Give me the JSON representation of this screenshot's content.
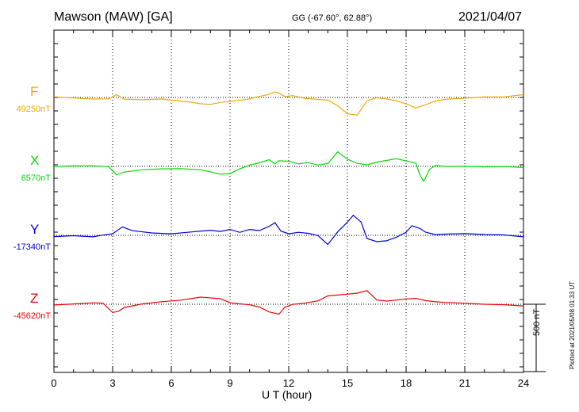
{
  "header": {
    "station": "Mawson (MAW)  [GA]",
    "coords": "GG (-67.60°,  62.88°)",
    "date": "2021/04/07"
  },
  "footer": {
    "xlabel": "U T (hour)",
    "scale_label": "500 nT",
    "plotted": "Plotted at 2021/05/08 01:33 UT"
  },
  "chart_data": {
    "type": "line",
    "xlabel": "U T (hour)",
    "xlim": [
      0,
      24
    ],
    "xticks": [
      "0",
      "3",
      "6",
      "9",
      "12",
      "15",
      "18",
      "21",
      "24"
    ],
    "scale_bar_nT": 500,
    "grid": "dotted vertical lines every 3 hours; dotted baseline per component",
    "series": [
      {
        "name": "F",
        "baseline_label": "49250nT",
        "color": "#f5a800",
        "x": [
          0,
          1,
          2,
          2.8,
          3.2,
          3.6,
          4.5,
          5.5,
          6.2,
          7,
          7.5,
          8,
          8.5,
          9,
          9.5,
          10,
          10.5,
          11,
          11.3,
          11.5,
          11.8,
          12.2,
          12.8,
          13.5,
          14,
          14.5,
          15,
          15.5,
          16,
          16.5,
          17,
          17.5,
          18,
          18.5,
          19,
          19.5,
          20,
          21,
          22,
          23,
          24
        ],
        "y": [
          49255,
          49250,
          49245,
          49248,
          49280,
          49245,
          49238,
          49240,
          49225,
          49210,
          49195,
          49190,
          49205,
          49215,
          49225,
          49240,
          49262,
          49280,
          49300,
          49290,
          49265,
          49268,
          49245,
          49232,
          49225,
          49180,
          49120,
          49110,
          49220,
          49245,
          49240,
          49230,
          49210,
          49180,
          49205,
          49230,
          49240,
          49245,
          49250,
          49248,
          49262
        ]
      },
      {
        "name": "X",
        "baseline_label": "6570nT",
        "color": "#00dd00",
        "x": [
          0,
          1,
          2,
          2.8,
          3.2,
          3.6,
          4.5,
          5.5,
          6.5,
          7.5,
          8.5,
          9,
          9.5,
          10,
          10.5,
          11,
          11.3,
          11.5,
          12,
          12.5,
          13,
          13.5,
          14,
          14.5,
          15,
          15.5,
          16,
          16.5,
          17,
          17.5,
          18,
          18.5,
          18.7,
          18.9,
          19.2,
          19.5,
          20,
          21,
          22,
          23,
          24
        ],
        "y": [
          6570,
          6570,
          6568,
          6560,
          6500,
          6520,
          6540,
          6550,
          6555,
          6550,
          6520,
          6525,
          6560,
          6585,
          6600,
          6620,
          6585,
          6605,
          6600,
          6580,
          6590,
          6575,
          6590,
          6680,
          6630,
          6600,
          6590,
          6610,
          6620,
          6630,
          6610,
          6590,
          6500,
          6450,
          6540,
          6570,
          6565,
          6570,
          6570,
          6575,
          6570
        ]
      },
      {
        "name": "Y",
        "baseline_label": "-17340nT",
        "color": "#0000dd",
        "x": [
          0,
          1,
          2,
          2.5,
          3,
          3.5,
          4,
          5,
          6,
          7,
          8,
          8.5,
          9,
          9.5,
          10,
          10.5,
          11,
          11.3,
          11.6,
          12,
          12.5,
          13,
          13.5,
          14,
          14.5,
          15,
          15.3,
          15.7,
          16,
          16.5,
          17,
          17.5,
          18,
          18.3,
          18.7,
          19,
          19.5,
          20,
          21,
          22,
          23,
          24
        ],
        "y": [
          -17350,
          -17340,
          -17345,
          -17330,
          -17320,
          -17270,
          -17300,
          -17320,
          -17330,
          -17320,
          -17310,
          -17320,
          -17305,
          -17325,
          -17300,
          -17305,
          -17270,
          -17240,
          -17300,
          -17320,
          -17310,
          -17320,
          -17340,
          -17410,
          -17320,
          -17250,
          -17200,
          -17250,
          -17370,
          -17390,
          -17380,
          -17350,
          -17310,
          -17260,
          -17280,
          -17310,
          -17330,
          -17330,
          -17330,
          -17340,
          -17345,
          -17360
        ]
      },
      {
        "name": "Z",
        "baseline_label": "-45620nT",
        "color": "#ee0000",
        "x": [
          0,
          1,
          2,
          2.5,
          3,
          3.3,
          3.6,
          4.5,
          5.5,
          6.5,
          7.5,
          8.5,
          9,
          9.5,
          10,
          10.5,
          11,
          11.5,
          11.8,
          12.2,
          12.8,
          13.5,
          14,
          14.5,
          15,
          15.5,
          16,
          16.5,
          17,
          17.5,
          18,
          18.5,
          19,
          19.5,
          20,
          21,
          22,
          23,
          24
        ],
        "y": [
          -45625,
          -45620,
          -45615,
          -45620,
          -45690,
          -45680,
          -45650,
          -45620,
          -45600,
          -45585,
          -45560,
          -45570,
          -45600,
          -45610,
          -45620,
          -45640,
          -45680,
          -45700,
          -45650,
          -45630,
          -45620,
          -45600,
          -45560,
          -45550,
          -45540,
          -45530,
          -45510,
          -45580,
          -45590,
          -45585,
          -45580,
          -45580,
          -45600,
          -45610,
          -45615,
          -45620,
          -45625,
          -45625,
          -45630
        ]
      }
    ]
  }
}
